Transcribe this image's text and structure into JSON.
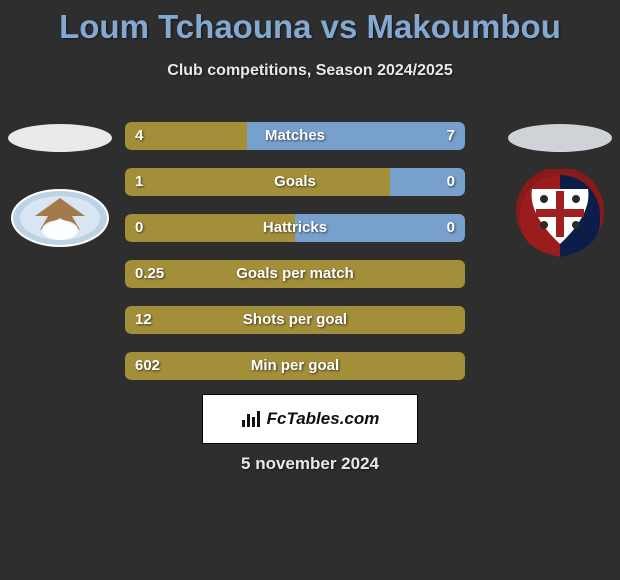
{
  "title": "Loum Tchaouna vs Makoumbou",
  "title_color": "#83a9d0",
  "subtitle": "Club competitions, Season 2024/2025",
  "date": "5 november 2024",
  "left_player": {
    "club": "Lazio",
    "oval_color": "#eaeaea"
  },
  "right_player": {
    "club": "Cagliari",
    "oval_color": "#cfd2d6"
  },
  "bars": [
    {
      "label": "Matches",
      "left_value": "4",
      "right_value": "7",
      "left_fill_pct": 36,
      "right_fill_pct": 64,
      "left_color": "#a38f3a",
      "right_color": "#78a0cc"
    },
    {
      "label": "Goals",
      "left_value": "1",
      "right_value": "0",
      "left_fill_pct": 78,
      "right_fill_pct": 22,
      "left_color": "#a38f3a",
      "right_color": "#78a0cc"
    },
    {
      "label": "Hattricks",
      "left_value": "0",
      "right_value": "0",
      "left_fill_pct": 50,
      "right_fill_pct": 50,
      "left_color": "#a38f3a",
      "right_color": "#78a0cc"
    },
    {
      "label": "Goals per match",
      "left_value": "0.25",
      "right_value": "",
      "left_fill_pct": 100,
      "right_fill_pct": 0,
      "left_color": "#a38f3a",
      "right_color": "#78a0cc"
    },
    {
      "label": "Shots per goal",
      "left_value": "12",
      "right_value": "",
      "left_fill_pct": 100,
      "right_fill_pct": 0,
      "left_color": "#a38f3a",
      "right_color": "#78a0cc"
    },
    {
      "label": "Min per goal",
      "left_value": "602",
      "right_value": "",
      "left_fill_pct": 100,
      "right_fill_pct": 0,
      "left_color": "#a38f3a",
      "right_color": "#78a0cc"
    }
  ],
  "attribution_text": "FcTables.com",
  "background_color": "#2e2e2e"
}
